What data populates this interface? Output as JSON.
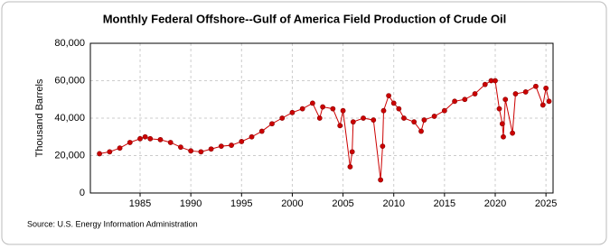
{
  "chart_data": {
    "type": "line",
    "title": "Monthly Federal Offshore--Gulf of America Field Production of Crude Oil",
    "y_label": "Thousand Barrels",
    "source": "Source: U.S. Energy Information Administration",
    "x": [
      1981.0,
      1982.0,
      1983.0,
      1984.0,
      1985.0,
      1985.5,
      1986.0,
      1987.0,
      1988.0,
      1989.0,
      1990.0,
      1991.0,
      1992.0,
      1993.0,
      1994.0,
      1995.0,
      1996.0,
      1997.0,
      1998.0,
      1999.0,
      2000.0,
      2001.0,
      2002.0,
      2002.7,
      2003.0,
      2004.0,
      2004.7,
      2005.0,
      2005.7,
      2005.9,
      2006.0,
      2007.0,
      2008.0,
      2008.7,
      2008.9,
      2009.0,
      2009.5,
      2010.0,
      2010.5,
      2011.0,
      2012.0,
      2012.7,
      2013.0,
      2014.0,
      2015.0,
      2016.0,
      2017.0,
      2018.0,
      2019.0,
      2019.6,
      2020.0,
      2020.4,
      2020.7,
      2020.8,
      2021.0,
      2021.7,
      2022.0,
      2023.0,
      2024.0,
      2024.7,
      2025.0,
      2025.3
    ],
    "series": [
      {
        "name": "Crude Oil",
        "color": "#cc0000",
        "values": [
          21000,
          22000,
          24000,
          27000,
          29000,
          30000,
          29000,
          28500,
          27000,
          24500,
          22500,
          22000,
          23500,
          25000,
          25500,
          27500,
          30000,
          33000,
          37000,
          40000,
          43000,
          45000,
          48000,
          40000,
          46000,
          45000,
          36000,
          44000,
          14000,
          22000,
          38000,
          40000,
          39000,
          7000,
          25000,
          44000,
          52000,
          48000,
          45000,
          40000,
          38000,
          33000,
          39000,
          41000,
          44000,
          49000,
          50000,
          53000,
          58000,
          60000,
          60000,
          45000,
          37000,
          30000,
          50000,
          32000,
          53000,
          54000,
          57000,
          47000,
          56000,
          49000
        ]
      }
    ],
    "xlim": [
      1980.1,
      2025.7
    ],
    "xticks": [
      1985,
      1990,
      1995,
      2000,
      2005,
      2010,
      2015,
      2020,
      2025
    ],
    "ylim": [
      0,
      80000
    ],
    "yticks": [
      0,
      {
        "value": 20000,
        "label": "20,000"
      },
      {
        "value": 40000,
        "label": "40,000"
      },
      {
        "value": 60000,
        "label": "60,000"
      },
      {
        "value": 80000,
        "label": "80,000"
      }
    ],
    "grid": true
  }
}
